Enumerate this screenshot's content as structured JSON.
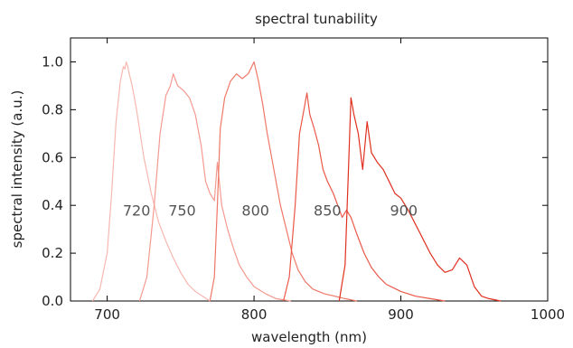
{
  "chart_data": {
    "type": "line",
    "title": "spectral tunability",
    "xlabel": "wavelength (nm)",
    "ylabel": "spectral intensity (a.u.)",
    "xlim": [
      675,
      1000
    ],
    "ylim": [
      0,
      1.1
    ],
    "xticks": [
      700,
      800,
      900,
      1000
    ],
    "xtick_labels": [
      "700",
      "800",
      "900",
      "1000"
    ],
    "yticks": [
      0.0,
      0.2,
      0.4,
      0.6,
      0.8,
      1.0
    ],
    "ytick_labels": [
      "0.0",
      "0.2",
      "0.4",
      "0.6",
      "0.8",
      "1.0"
    ],
    "grid": false,
    "series": [
      {
        "label": "720",
        "label_at": [
          720,
          0.38
        ],
        "color": "#f7b8b0",
        "x": [
          690,
          695,
          700,
          703,
          706,
          709,
          711,
          712,
          713,
          714,
          715,
          717,
          720,
          725,
          730,
          735,
          740,
          745,
          750,
          755,
          760,
          765,
          770
        ],
        "y": [
          0.0,
          0.05,
          0.2,
          0.45,
          0.75,
          0.92,
          0.98,
          0.97,
          1.0,
          0.98,
          0.95,
          0.9,
          0.8,
          0.6,
          0.45,
          0.33,
          0.25,
          0.18,
          0.12,
          0.07,
          0.04,
          0.02,
          0.0
        ]
      },
      {
        "label": "750",
        "label_at": [
          751,
          0.38
        ],
        "color": "#f49a90",
        "x": [
          722,
          727,
          732,
          736,
          740,
          743,
          745,
          748,
          752,
          756,
          760,
          764,
          767,
          770,
          773,
          775,
          778,
          782,
          786,
          790,
          795,
          800,
          808,
          815,
          825
        ],
        "y": [
          0.0,
          0.1,
          0.4,
          0.7,
          0.86,
          0.9,
          0.95,
          0.9,
          0.88,
          0.85,
          0.78,
          0.65,
          0.5,
          0.45,
          0.42,
          0.58,
          0.4,
          0.3,
          0.22,
          0.15,
          0.1,
          0.06,
          0.03,
          0.01,
          0.0
        ]
      },
      {
        "label": "800",
        "label_at": [
          801,
          0.38
        ],
        "color": "#ef7868",
        "x": [
          770,
          773,
          775,
          777,
          780,
          784,
          788,
          792,
          796,
          800,
          803,
          806,
          809,
          812,
          815,
          818,
          822,
          826,
          830,
          835,
          840,
          848,
          855,
          862,
          870
        ],
        "y": [
          0.0,
          0.1,
          0.4,
          0.72,
          0.85,
          0.92,
          0.95,
          0.93,
          0.95,
          1.0,
          0.92,
          0.82,
          0.7,
          0.6,
          0.5,
          0.4,
          0.3,
          0.2,
          0.13,
          0.08,
          0.05,
          0.03,
          0.02,
          0.01,
          0.0
        ]
      },
      {
        "label": "850",
        "label_at": [
          850,
          0.38
        ],
        "color": "#ea5848",
        "x": [
          820,
          824,
          828,
          831,
          834,
          836,
          838,
          841,
          844,
          847,
          850,
          854,
          857,
          860,
          863,
          866,
          870,
          875,
          880,
          885,
          890,
          900,
          910,
          920,
          930
        ],
        "y": [
          0.0,
          0.1,
          0.4,
          0.7,
          0.8,
          0.87,
          0.78,
          0.72,
          0.65,
          0.55,
          0.5,
          0.45,
          0.4,
          0.35,
          0.38,
          0.35,
          0.28,
          0.2,
          0.14,
          0.1,
          0.07,
          0.04,
          0.02,
          0.01,
          0.0
        ]
      },
      {
        "label": "900",
        "label_at": [
          902,
          0.38
        ],
        "color": "#e03020",
        "x": [
          858,
          862,
          864,
          866,
          868,
          871,
          874,
          877,
          880,
          884,
          888,
          892,
          896,
          900,
          905,
          910,
          915,
          920,
          925,
          930,
          935,
          940,
          945,
          950,
          955,
          960,
          968
        ],
        "y": [
          0.0,
          0.15,
          0.5,
          0.85,
          0.78,
          0.7,
          0.55,
          0.75,
          0.62,
          0.58,
          0.55,
          0.5,
          0.45,
          0.43,
          0.38,
          0.32,
          0.26,
          0.2,
          0.15,
          0.12,
          0.13,
          0.18,
          0.15,
          0.06,
          0.02,
          0.01,
          0.0
        ]
      }
    ]
  }
}
